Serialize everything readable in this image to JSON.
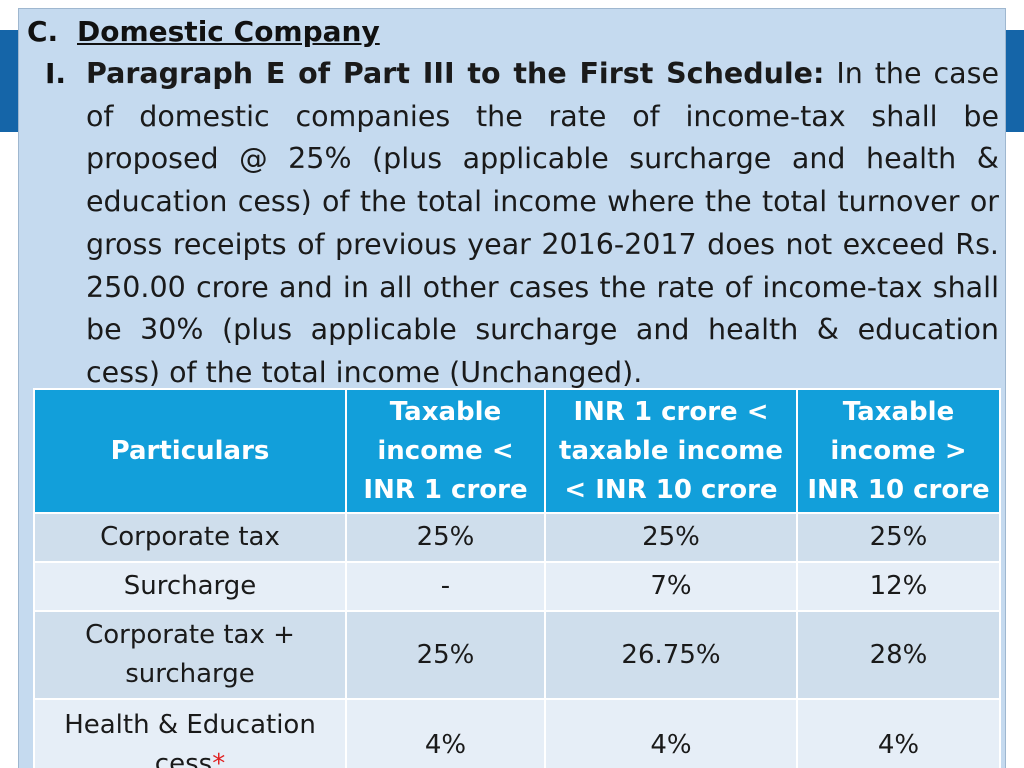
{
  "section": {
    "letter": "C.",
    "title": "Domestic Company"
  },
  "item": {
    "number": "I.",
    "lead": "Paragraph E of Part III to the First Schedule:",
    "body": " In the case of domestic companies the rate of income-tax shall be proposed @ 25% (plus applicable surcharge and health & education cess) of the total income where the total turnover or gross receipts of previous year 2016-2017 does not exceed Rs. 250.00 crore and in all other cases the rate of income-tax shall be 30% (plus applicable surcharge and health & education cess) of the total income (Unchanged)."
  },
  "table": {
    "headers": [
      "Particulars",
      "Taxable income < INR 1 crore",
      "INR 1 crore < taxable income < INR 10 crore",
      "Taxable income > INR 10 crore"
    ],
    "rows": [
      {
        "label": "Corporate tax",
        "values": [
          "25%",
          "25%",
          "25%"
        ]
      },
      {
        "label": "Surcharge",
        "values": [
          "-",
          "7%",
          "12%"
        ]
      },
      {
        "label": "Corporate tax + surcharge",
        "values": [
          "25%",
          "26.75%",
          "28%"
        ]
      },
      {
        "label": "Health & Education cess",
        "marker": "*",
        "values": [
          "4%",
          "4%",
          "4%"
        ]
      }
    ]
  },
  "colors": {
    "header_bg": "#129fda",
    "panel_bg": "#c5daef",
    "row_dark": "#cfdeec",
    "row_light": "#e6eef7",
    "accent_band": "#1565a8",
    "marker": "#e02020"
  }
}
